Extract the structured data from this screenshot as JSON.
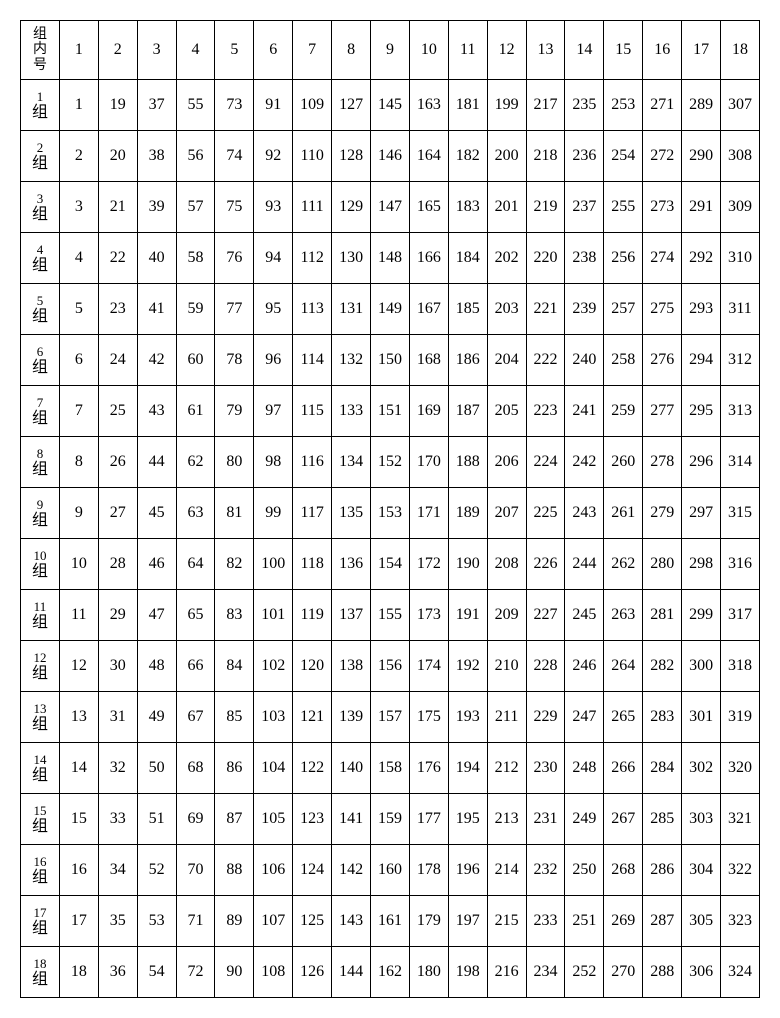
{
  "table": {
    "type": "table",
    "corner_label": "组\n内\n号",
    "column_headers": [
      "1",
      "2",
      "3",
      "4",
      "5",
      "6",
      "7",
      "8",
      "9",
      "10",
      "11",
      "12",
      "13",
      "14",
      "15",
      "16",
      "17",
      "18"
    ],
    "row_labels": [
      {
        "num": "1",
        "suffix": "组"
      },
      {
        "num": "2",
        "suffix": "组"
      },
      {
        "num": "3",
        "suffix": "组"
      },
      {
        "num": "4",
        "suffix": "组"
      },
      {
        "num": "5",
        "suffix": "组"
      },
      {
        "num": "6",
        "suffix": "组"
      },
      {
        "num": "7",
        "suffix": "组"
      },
      {
        "num": "8",
        "suffix": "组"
      },
      {
        "num": "9",
        "suffix": "组"
      },
      {
        "num": "10",
        "suffix": "组"
      },
      {
        "num": "11",
        "suffix": "组"
      },
      {
        "num": "12",
        "suffix": "组"
      },
      {
        "num": "13",
        "suffix": "组"
      },
      {
        "num": "14",
        "suffix": "组"
      },
      {
        "num": "15",
        "suffix": "组"
      },
      {
        "num": "16",
        "suffix": "组"
      },
      {
        "num": "17",
        "suffix": "组"
      },
      {
        "num": "18",
        "suffix": "组"
      }
    ],
    "rows": [
      [
        "1",
        "19",
        "37",
        "55",
        "73",
        "91",
        "109",
        "127",
        "145",
        "163",
        "181",
        "199",
        "217",
        "235",
        "253",
        "271",
        "289",
        "307"
      ],
      [
        "2",
        "20",
        "38",
        "56",
        "74",
        "92",
        "110",
        "128",
        "146",
        "164",
        "182",
        "200",
        "218",
        "236",
        "254",
        "272",
        "290",
        "308"
      ],
      [
        "3",
        "21",
        "39",
        "57",
        "75",
        "93",
        "111",
        "129",
        "147",
        "165",
        "183",
        "201",
        "219",
        "237",
        "255",
        "273",
        "291",
        "309"
      ],
      [
        "4",
        "22",
        "40",
        "58",
        "76",
        "94",
        "112",
        "130",
        "148",
        "166",
        "184",
        "202",
        "220",
        "238",
        "256",
        "274",
        "292",
        "310"
      ],
      [
        "5",
        "23",
        "41",
        "59",
        "77",
        "95",
        "113",
        "131",
        "149",
        "167",
        "185",
        "203",
        "221",
        "239",
        "257",
        "275",
        "293",
        "311"
      ],
      [
        "6",
        "24",
        "42",
        "60",
        "78",
        "96",
        "114",
        "132",
        "150",
        "168",
        "186",
        "204",
        "222",
        "240",
        "258",
        "276",
        "294",
        "312"
      ],
      [
        "7",
        "25",
        "43",
        "61",
        "79",
        "97",
        "115",
        "133",
        "151",
        "169",
        "187",
        "205",
        "223",
        "241",
        "259",
        "277",
        "295",
        "313"
      ],
      [
        "8",
        "26",
        "44",
        "62",
        "80",
        "98",
        "116",
        "134",
        "152",
        "170",
        "188",
        "206",
        "224",
        "242",
        "260",
        "278",
        "296",
        "314"
      ],
      [
        "9",
        "27",
        "45",
        "63",
        "81",
        "99",
        "117",
        "135",
        "153",
        "171",
        "189",
        "207",
        "225",
        "243",
        "261",
        "279",
        "297",
        "315"
      ],
      [
        "10",
        "28",
        "46",
        "64",
        "82",
        "100",
        "118",
        "136",
        "154",
        "172",
        "190",
        "208",
        "226",
        "244",
        "262",
        "280",
        "298",
        "316"
      ],
      [
        "11",
        "29",
        "47",
        "65",
        "83",
        "101",
        "119",
        "137",
        "155",
        "173",
        "191",
        "209",
        "227",
        "245",
        "263",
        "281",
        "299",
        "317"
      ],
      [
        "12",
        "30",
        "48",
        "66",
        "84",
        "102",
        "120",
        "138",
        "156",
        "174",
        "192",
        "210",
        "228",
        "246",
        "264",
        "282",
        "300",
        "318"
      ],
      [
        "13",
        "31",
        "49",
        "67",
        "85",
        "103",
        "121",
        "139",
        "157",
        "175",
        "193",
        "211",
        "229",
        "247",
        "265",
        "283",
        "301",
        "319"
      ],
      [
        "14",
        "32",
        "50",
        "68",
        "86",
        "104",
        "122",
        "140",
        "158",
        "176",
        "194",
        "212",
        "230",
        "248",
        "266",
        "284",
        "302",
        "320"
      ],
      [
        "15",
        "33",
        "51",
        "69",
        "87",
        "105",
        "123",
        "141",
        "159",
        "177",
        "195",
        "213",
        "231",
        "249",
        "267",
        "285",
        "303",
        "321"
      ],
      [
        "16",
        "34",
        "52",
        "70",
        "88",
        "106",
        "124",
        "142",
        "160",
        "178",
        "196",
        "214",
        "232",
        "250",
        "268",
        "286",
        "304",
        "322"
      ],
      [
        "17",
        "35",
        "53",
        "71",
        "89",
        "107",
        "125",
        "143",
        "161",
        "179",
        "197",
        "215",
        "233",
        "251",
        "269",
        "287",
        "305",
        "323"
      ],
      [
        "18",
        "36",
        "54",
        "72",
        "90",
        "108",
        "126",
        "144",
        "162",
        "180",
        "198",
        "216",
        "234",
        "252",
        "270",
        "288",
        "306",
        "324"
      ]
    ],
    "border_color": "#000000",
    "background_color": "#ffffff",
    "text_color": "#000000",
    "cell_fontsize": 16,
    "corner_fontsize": 14,
    "row_num_fontsize": 13
  }
}
